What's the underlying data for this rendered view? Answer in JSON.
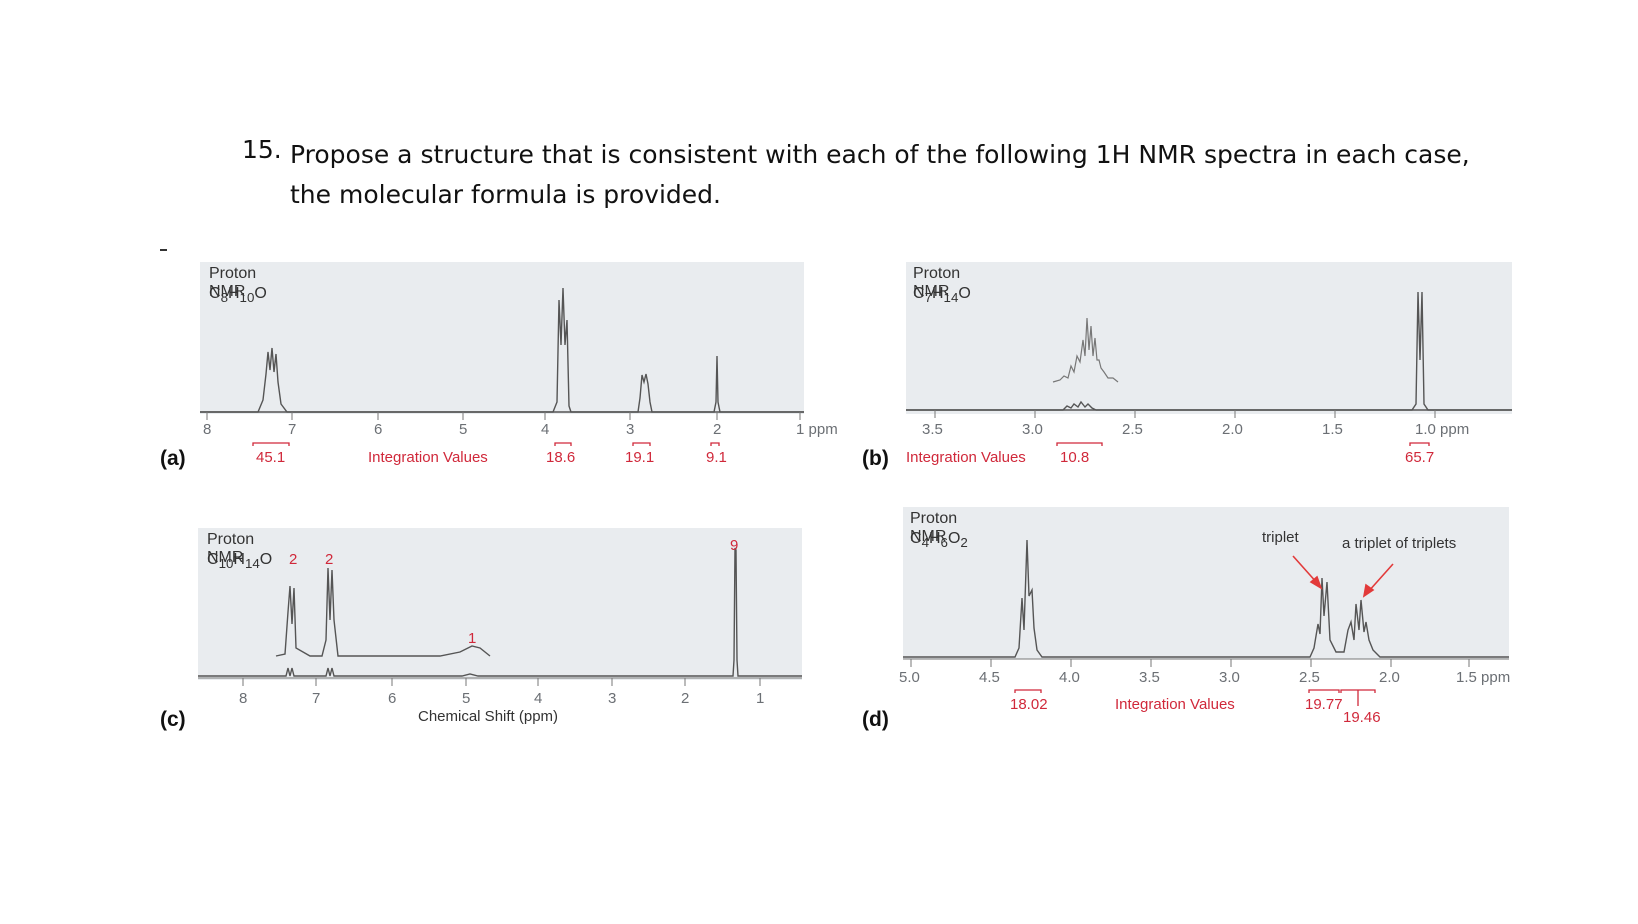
{
  "question": {
    "number": "15.",
    "text": "Propose a structure that is consistent with each of the following 1H NMR spectra in each case, the molecular formula is provided."
  },
  "panels": {
    "a": {
      "letter": "(a)",
      "title": "Proton NMR",
      "formula": "C8H10O",
      "axis_labels": [
        "8",
        "7",
        "6",
        "5",
        "4",
        "3",
        "2",
        "1 ppm"
      ],
      "integration_caption": "Integration Values",
      "integrations": [
        "45.1",
        "18.6",
        "19.1",
        "9.1"
      ]
    },
    "b": {
      "letter": "(b)",
      "title": "Proton NMR",
      "formula": "C7H14O",
      "axis_labels": [
        "3.5",
        "3.0",
        "2.5",
        "2.0",
        "1.5",
        "1.0 ppm"
      ],
      "integration_caption": "Integration Values",
      "integrations": [
        "10.8",
        "65.7"
      ]
    },
    "c": {
      "letter": "(c)",
      "title": "Proton NMR",
      "formula": "C10H14O",
      "axis_labels": [
        "8",
        "7",
        "6",
        "5",
        "4",
        "3",
        "2",
        "1"
      ],
      "axis_title": "Chemical Shift (ppm)",
      "peak_labels": [
        "2",
        "2",
        "1",
        "9"
      ]
    },
    "d": {
      "letter": "(d)",
      "title": "Proton NMR",
      "formula": "C4H6O2",
      "axis_labels": [
        "5.0",
        "4.5",
        "4.0",
        "3.5",
        "3.0",
        "2.5",
        "2.0",
        "1.5 ppm"
      ],
      "integration_caption": "Integration Values",
      "integrations": [
        "18.02",
        "19.77",
        "19.46"
      ],
      "annotations": [
        "triplet",
        "a triplet of triplets"
      ]
    }
  }
}
